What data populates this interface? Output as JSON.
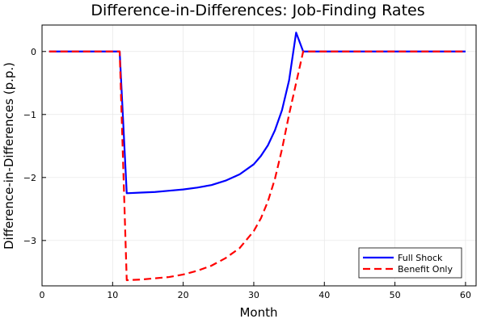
{
  "chart_data": {
    "type": "line",
    "title": "Difference-in-Differences: Job-Finding Rates",
    "xlabel": "Month",
    "ylabel": "Difference-in-Differences (p.p.)",
    "xlim": [
      0,
      61.5
    ],
    "ylim": [
      -3.72,
      0.42
    ],
    "x_ticks": [
      0,
      10,
      20,
      30,
      40,
      50,
      60
    ],
    "y_ticks": [
      0,
      -1,
      -2,
      -3
    ],
    "y_tick_labels": [
      "0",
      "−1",
      "−2",
      "−3"
    ],
    "grid": true,
    "legend_position": "bottom-right",
    "series": [
      {
        "name": "Full Shock",
        "color": "#0000ff",
        "dash": "solid",
        "x": [
          1,
          11,
          12,
          14,
          16,
          18,
          20,
          22,
          24,
          26,
          28,
          30,
          31,
          32,
          33,
          34,
          35,
          36,
          37,
          40,
          45,
          50,
          55,
          60
        ],
        "y": [
          0,
          0,
          -2.25,
          -2.24,
          -2.23,
          -2.21,
          -2.19,
          -2.16,
          -2.12,
          -2.05,
          -1.95,
          -1.79,
          -1.66,
          -1.49,
          -1.25,
          -0.93,
          -0.46,
          0.3,
          0,
          0,
          0,
          0,
          0,
          0
        ]
      },
      {
        "name": "Benefit Only",
        "color": "#ff0000",
        "dash": "dashed",
        "x": [
          1,
          11,
          12,
          14,
          16,
          18,
          20,
          22,
          24,
          26,
          28,
          30,
          31,
          32,
          33,
          34,
          35,
          36,
          37,
          40,
          45,
          50,
          55,
          60
        ],
        "y": [
          0,
          0,
          -3.63,
          -3.62,
          -3.6,
          -3.58,
          -3.54,
          -3.48,
          -3.4,
          -3.28,
          -3.12,
          -2.85,
          -2.65,
          -2.38,
          -2.02,
          -1.55,
          -1.0,
          -0.5,
          0,
          0,
          0,
          0,
          0,
          0
        ]
      }
    ]
  }
}
